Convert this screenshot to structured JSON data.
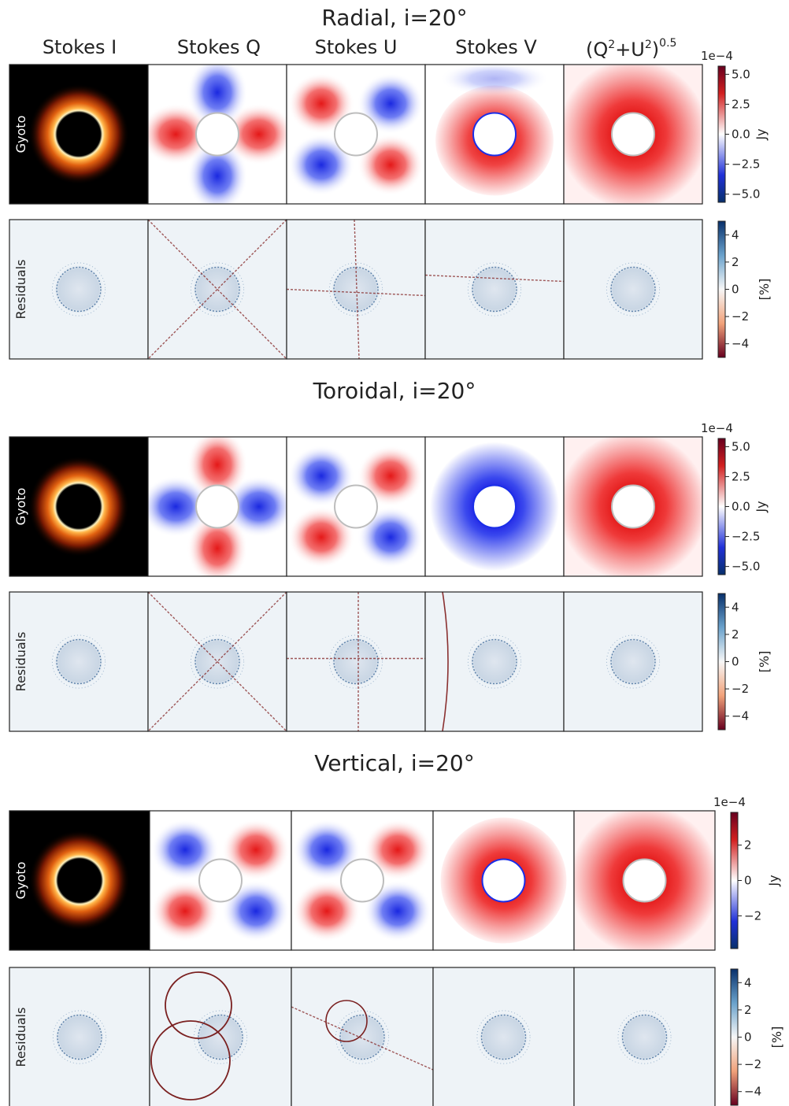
{
  "column_headers": [
    "Stokes I",
    "Stokes Q",
    "Stokes U",
    "Stokes V",
    "(Q",
    "2",
    "+U",
    "2",
    ")",
    "0.5"
  ],
  "row_labels": {
    "model": "Gyoto",
    "residuals": "Residuals"
  },
  "colorbar": {
    "flux_unit": "Jy",
    "residual_unit": "[%]",
    "exponent": "1e−4",
    "flux_ticks_a": [
      "5.0",
      "2.5",
      "0.0",
      "−2.5",
      "−5.0"
    ],
    "flux_ticks_c": [
      "2",
      "0",
      "−2"
    ],
    "residual_ticks": [
      "4",
      "2",
      "0",
      "−2",
      "−4"
    ]
  },
  "sections": [
    {
      "title": "Radial, i=20°",
      "flux_scale": "a",
      "q_sign": 1,
      "u_sign": -1,
      "v_mode": "radial-v"
    },
    {
      "title": "Toroidal, i=20°",
      "flux_scale": "a",
      "q_sign": -1,
      "u_sign": 1,
      "v_mode": "blue-ring"
    },
    {
      "title": "Vertical, i=20°",
      "flux_scale": "c",
      "q_sign": 1,
      "u_sign": 1,
      "v_mode": "red-ring"
    }
  ],
  "colors": {
    "diverging_red": "#e81a1a",
    "diverging_blue": "#1a2ee8",
    "colorbar_dark_red": "#67001f",
    "colorbar_dark_blue": "#08306b",
    "residual_bg": "#eef3f7",
    "stokes_i_bg": "#000000",
    "stokes_i_ring": "#ffb347"
  }
}
